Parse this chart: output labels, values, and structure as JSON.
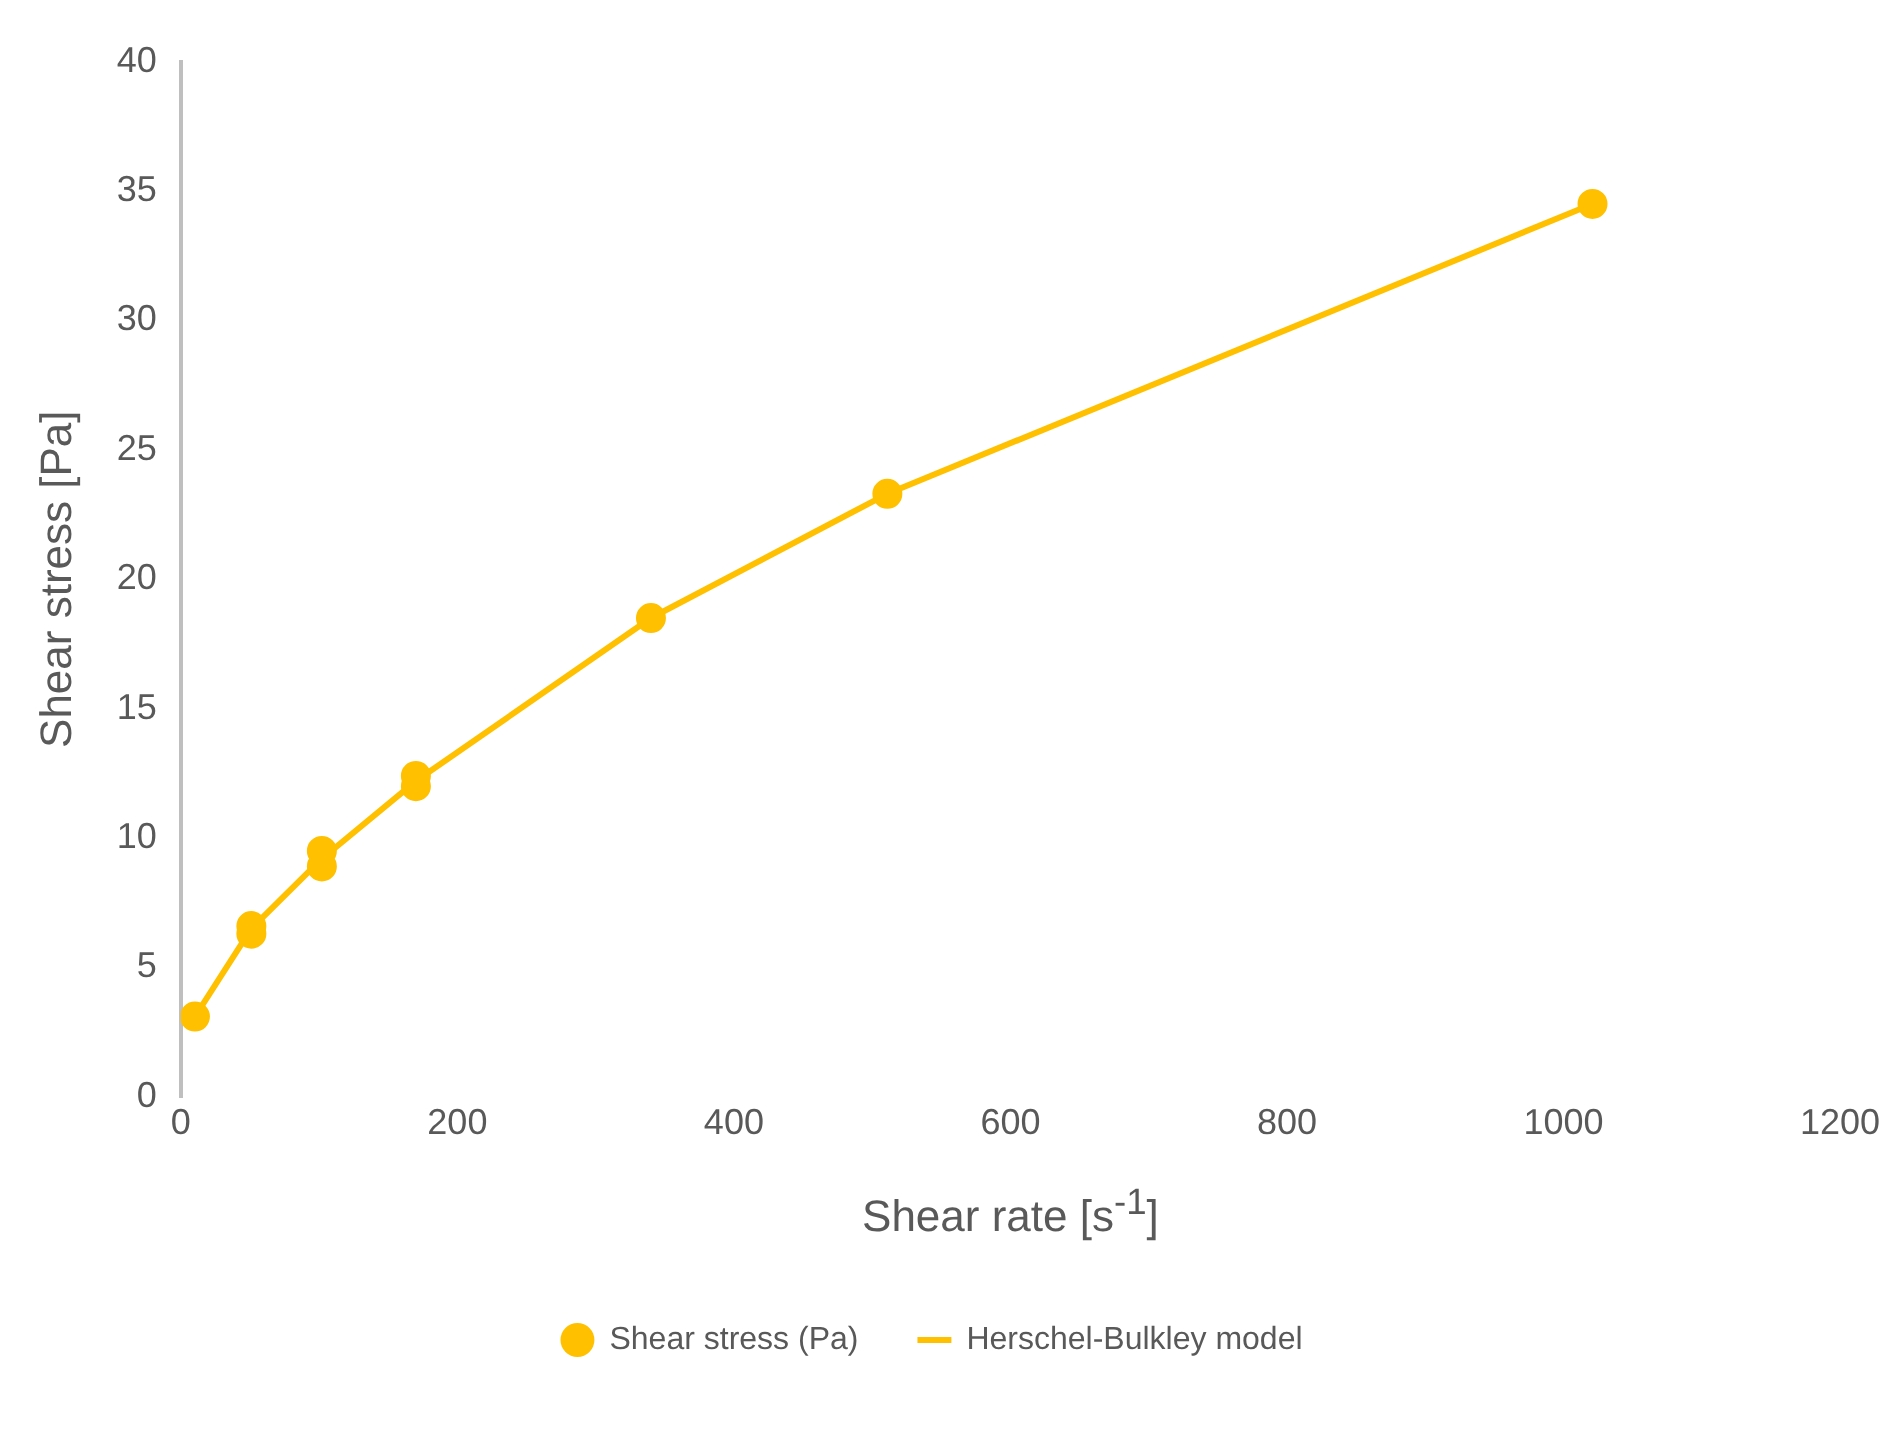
{
  "chart_data": {
    "type": "scatter",
    "xlabel": "Shear rate [s$^{-1}$]",
    "ylabel": "Shear stress [Pa]",
    "series": [
      {
        "name": "Shear stress (Pa)",
        "type": "scatter",
        "color": "#ffc000",
        "marker": "circle",
        "x": [
          10.2,
          51,
          51,
          102,
          102,
          170,
          170,
          340,
          511,
          1021
        ],
        "values": [
          3.1,
          6.6,
          6.3,
          9.5,
          8.9,
          12.4,
          12.0,
          18.5,
          23.3,
          34.5
        ]
      },
      {
        "name": "Herschel-Bulkley model",
        "type": "line",
        "color": "#ffc000",
        "marker": "none",
        "line_style": "solid",
        "x": [
          10.2,
          51,
          102,
          170,
          340,
          511,
          1021
        ],
        "values": [
          3.1,
          6.5,
          9.2,
          12.2,
          18.5,
          23.3,
          34.5
        ]
      }
    ],
    "xlim": [
      0,
      1200
    ],
    "xticks": [
      0,
      200,
      400,
      600,
      800,
      1000,
      1200
    ],
    "ylim": [
      0,
      40
    ],
    "yticks": [
      0,
      5,
      10,
      15,
      20,
      25,
      30,
      35,
      40
    ],
    "grid": false,
    "legend": "bottom"
  }
}
